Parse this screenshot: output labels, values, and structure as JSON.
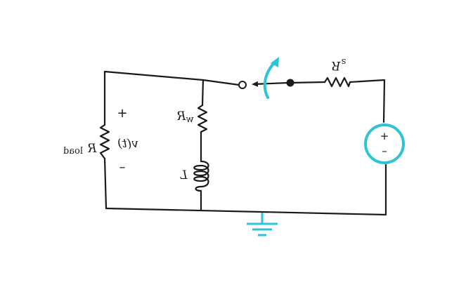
{
  "colors": {
    "accent": "#2ec4d6",
    "ink": "#1a1a1a"
  },
  "labels": {
    "rs_main": "R",
    "rs_sub": "s",
    "rw_main": "R",
    "rw_sub": "w",
    "inductor": "L",
    "rload_main": "R",
    "rload_sub": "load",
    "voltage": "v(t)",
    "plus": "+",
    "minus": "–",
    "source_plus": "+",
    "source_minus": "–"
  },
  "icons": {
    "ground": "ground-icon",
    "source": "voltage-source-icon",
    "switch_arrow": "switch-motion-arrow-icon"
  }
}
